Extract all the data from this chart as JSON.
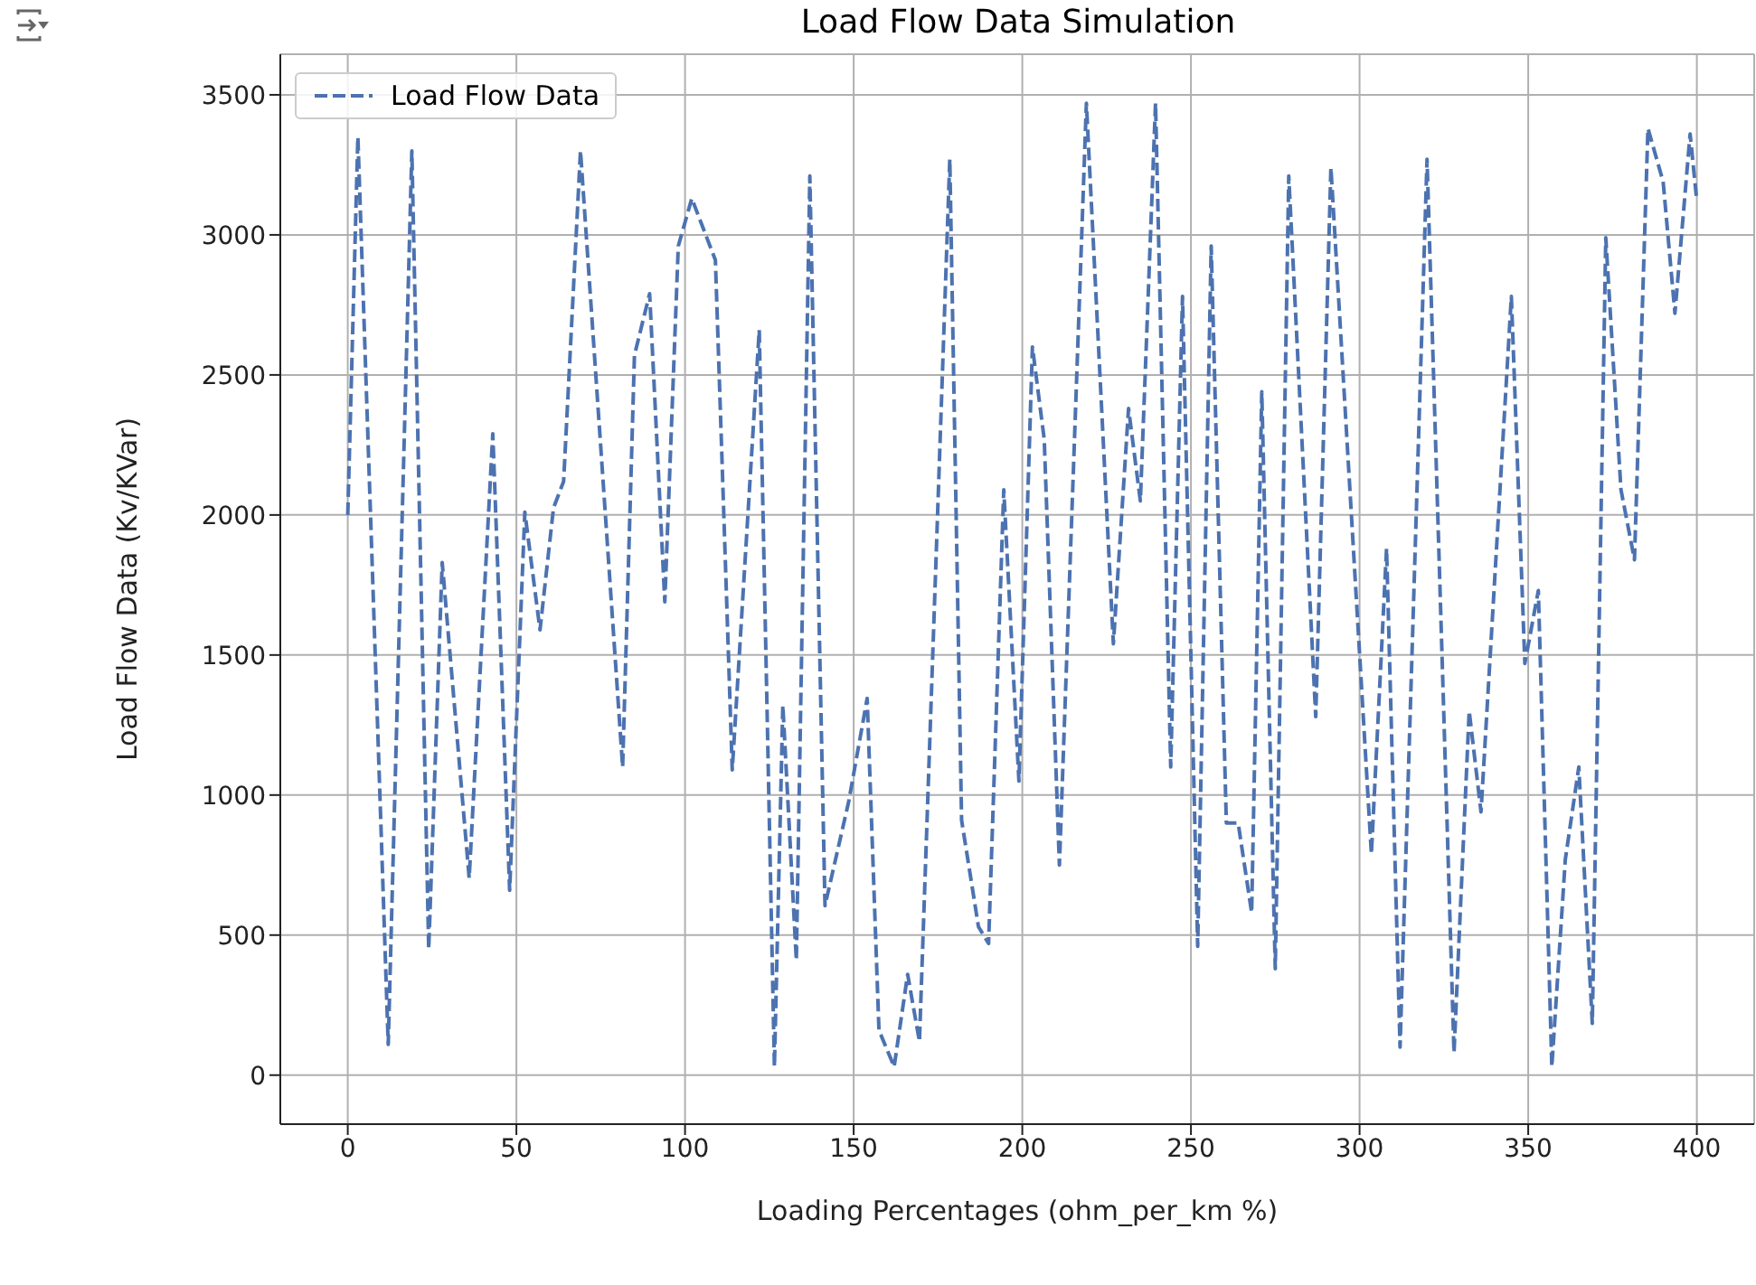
{
  "chart_data": {
    "type": "line",
    "title": "Load Flow Data Simulation",
    "xlabel": "Loading Percentages (ohm_per_km %)",
    "ylabel": "Load Flow Data (Kv/KVar)",
    "x": [
      0,
      3,
      12,
      19,
      24,
      28,
      36,
      43,
      48,
      52.5,
      57,
      61,
      64,
      69,
      81.5,
      85,
      89.5,
      94,
      98,
      102,
      109,
      114,
      122,
      126.5,
      129,
      133,
      137,
      141.5,
      148.5,
      154,
      157.5,
      162,
      166,
      169.5,
      178.5,
      182,
      187,
      190,
      194.5,
      199,
      203,
      206.5,
      211,
      219,
      227,
      231.5,
      235,
      239.5,
      244,
      247.5,
      252,
      256,
      260.5,
      264,
      268,
      271,
      275,
      279,
      287,
      291.5,
      303.5,
      308,
      312,
      320,
      328,
      332.5,
      336,
      345,
      349,
      353,
      357,
      361,
      365,
      369,
      373,
      377.5,
      381.5,
      385.5,
      390,
      393.5,
      398,
      400
    ],
    "series": [
      {
        "name": "Load Flow Data",
        "color": "#4c72b0",
        "values": [
          2000,
          3350,
          110,
          3300,
          450,
          1830,
          704,
          2290,
          660,
          2010,
          1590,
          2025,
          2120,
          3300,
          1100,
          2570,
          2790,
          1690,
          2960,
          3130,
          2910,
          1090,
          2660,
          30,
          1320,
          410,
          3210,
          605,
          975,
          1345,
          160,
          30,
          360,
          120,
          3270,
          910,
          530,
          470,
          2090,
          1050,
          2600,
          2270,
          750,
          3470,
          1540,
          2380,
          2050,
          3470,
          1100,
          2780,
          460,
          2960,
          900,
          900,
          580,
          2440,
          380,
          3210,
          1280,
          3240,
          790,
          1880,
          100,
          3270,
          80,
          1300,
          940,
          2780,
          1470,
          1730,
          30,
          770,
          1100,
          185,
          2990,
          2090,
          1840,
          3380,
          3190,
          2720,
          3360,
          3120
        ]
      }
    ],
    "xlim": [
      -20,
      417
    ],
    "xticks": [
      0,
      50,
      100,
      150,
      200,
      250,
      300,
      350,
      400
    ],
    "ylim": [
      -175,
      3645
    ],
    "yticks": [
      0,
      500,
      1000,
      1500,
      2000,
      2500,
      3000,
      3500
    ],
    "grid": true,
    "legend": "top left",
    "marker": "none",
    "line_style": "dashed"
  }
}
